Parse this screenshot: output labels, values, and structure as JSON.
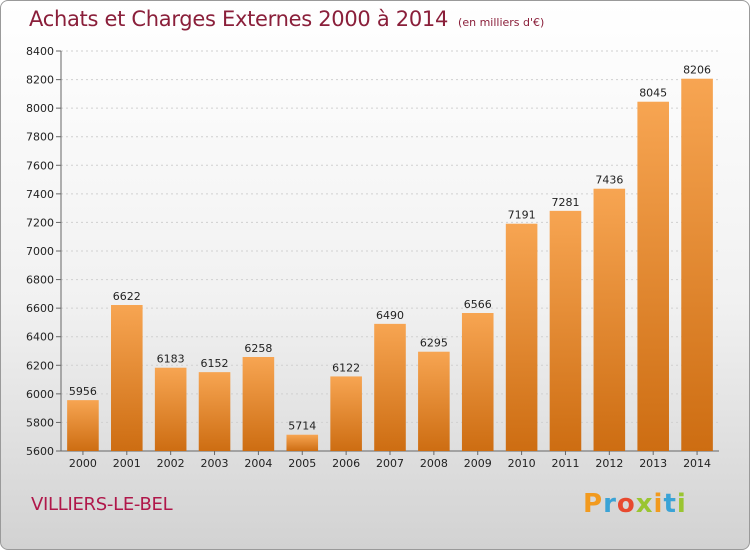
{
  "title": "Achats et Charges Externes 2000 à 2014",
  "subtitle": "(en milliers d'€)",
  "commune": "VILLIERS-LE-BEL",
  "brand": {
    "letters": [
      "P",
      "r",
      "o",
      "x",
      "i",
      "t",
      "i"
    ],
    "colors": [
      "#f29a1e",
      "#3aa3d6",
      "#e8492f",
      "#9ac531",
      "#f29a1e",
      "#3aa3d6",
      "#9ac531"
    ]
  },
  "chart_data": {
    "type": "bar",
    "title": "Achats et Charges Externes 2000 à 2014",
    "categories": [
      "2000",
      "2001",
      "2002",
      "2003",
      "2004",
      "2005",
      "2006",
      "2007",
      "2008",
      "2009",
      "2010",
      "2011",
      "2012",
      "2013",
      "2014"
    ],
    "values": [
      5956,
      6622,
      6183,
      6152,
      6258,
      5714,
      6122,
      6490,
      6295,
      6566,
      7191,
      7281,
      7436,
      8045,
      8206
    ],
    "ylim": [
      5600,
      8400
    ],
    "yticks": [
      5600,
      5800,
      6000,
      6200,
      6400,
      6600,
      6800,
      7000,
      7200,
      7400,
      7600,
      7800,
      8000,
      8200,
      8400
    ],
    "grid": true,
    "bar_color": "#f28f2e"
  }
}
